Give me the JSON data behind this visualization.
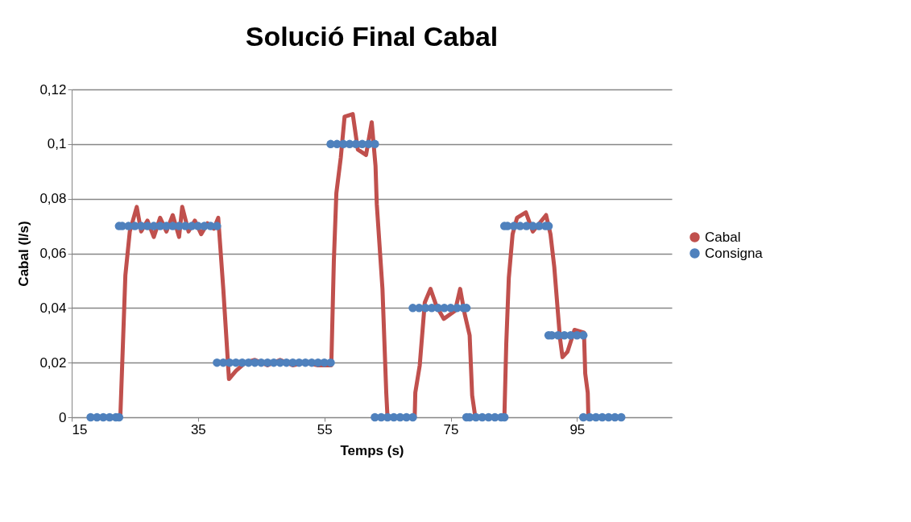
{
  "chart_data": {
    "type": "line",
    "title": "Solució Final Cabal",
    "xlabel": "Temps (s)",
    "ylabel": "Cabal (l/s)",
    "xlim": [
      15,
      110
    ],
    "xticks": [
      15,
      35,
      55,
      75,
      95
    ],
    "ylim": [
      0,
      0.12
    ],
    "yticks": [
      {
        "value": 0,
        "label": "0"
      },
      {
        "value": 0.02,
        "label": "0,02"
      },
      {
        "value": 0.04,
        "label": "0,04"
      },
      {
        "value": 0.06,
        "label": "0,06"
      },
      {
        "value": 0.08,
        "label": "0,08"
      },
      {
        "value": 0.1,
        "label": "0,1"
      },
      {
        "value": 0.12,
        "label": "0,12"
      }
    ],
    "grid": "y",
    "legend": "right",
    "series": [
      {
        "name": "Cabal",
        "color": "#c0504d",
        "marker": "none",
        "line_style": "solid",
        "x": [
          18,
          22.7,
          23.5,
          24.2,
          25.3,
          26,
          27,
          28,
          29,
          30,
          31,
          32,
          32.5,
          33.5,
          34.5,
          35.5,
          36.5,
          37.5,
          38.2,
          39,
          39.9,
          41,
          42.5,
          44,
          46,
          48,
          50,
          52,
          54,
          56.1,
          56.5,
          56.9,
          57.6,
          58.2,
          59.5,
          60.3,
          61.6,
          62.5,
          63.1,
          63.3,
          64.2,
          64.8,
          65,
          69.3,
          69.4,
          70.1,
          70.9,
          71.8,
          72.7,
          73.9,
          75.7,
          76.5,
          77.2,
          78,
          78.4,
          78.9,
          83.5,
          83.8,
          84.2,
          84.8,
          85.5,
          86.9,
          88,
          90.1,
          90.8,
          91.4,
          92.3,
          92.7,
          93.5,
          94.6,
          96.1,
          96.3,
          96.7,
          96.8
        ],
        "values": [
          0,
          0,
          0.052,
          0.068,
          0.077,
          0.068,
          0.072,
          0.066,
          0.073,
          0.068,
          0.074,
          0.066,
          0.077,
          0.068,
          0.072,
          0.067,
          0.071,
          0.069,
          0.073,
          0.047,
          0.014,
          0.017,
          0.02,
          0.021,
          0.019,
          0.021,
          0.019,
          0.02,
          0.019,
          0.019,
          0.057,
          0.082,
          0.095,
          0.11,
          0.111,
          0.098,
          0.096,
          0.108,
          0.092,
          0.078,
          0.047,
          0.009,
          0,
          0,
          0.009,
          0.019,
          0.042,
          0.047,
          0.041,
          0.036,
          0.039,
          0.047,
          0.038,
          0.03,
          0.008,
          0,
          0,
          0.027,
          0.051,
          0.067,
          0.073,
          0.075,
          0.068,
          0.074,
          0.067,
          0.055,
          0.029,
          0.022,
          0.024,
          0.032,
          0.031,
          0.016,
          0.009,
          0
        ]
      },
      {
        "name": "Consigna",
        "type": "scatter",
        "color": "#4f81bd",
        "marker": "circle",
        "x": [
          18,
          19,
          20,
          21,
          22,
          22.5,
          22.5,
          23,
          24,
          25,
          26,
          27,
          28,
          29,
          30,
          31,
          32,
          33,
          34,
          35,
          36,
          37,
          38,
          38,
          39,
          40,
          41,
          42,
          43,
          44,
          45,
          46,
          47,
          48,
          49,
          50,
          51,
          52,
          53,
          54,
          55,
          56,
          56,
          57,
          58,
          59,
          60,
          61,
          62,
          63,
          63,
          64,
          65,
          66,
          67,
          68,
          69,
          69,
          70,
          71,
          72,
          73,
          74,
          75,
          76,
          77,
          77.5,
          77.5,
          78,
          79,
          80,
          81,
          82,
          83,
          83.5,
          83.5,
          84,
          85,
          86,
          87,
          88,
          89,
          90,
          90.5,
          90.5,
          91,
          92,
          93,
          94,
          95,
          96,
          96,
          97,
          98,
          99,
          100,
          101,
          102
        ],
        "values": [
          0,
          0,
          0,
          0,
          0,
          0,
          0.07,
          0.07,
          0.07,
          0.07,
          0.07,
          0.07,
          0.07,
          0.07,
          0.07,
          0.07,
          0.07,
          0.07,
          0.07,
          0.07,
          0.07,
          0.07,
          0.07,
          0.02,
          0.02,
          0.02,
          0.02,
          0.02,
          0.02,
          0.02,
          0.02,
          0.02,
          0.02,
          0.02,
          0.02,
          0.02,
          0.02,
          0.02,
          0.02,
          0.02,
          0.02,
          0.02,
          0.1,
          0.1,
          0.1,
          0.1,
          0.1,
          0.1,
          0.1,
          0.1,
          0,
          0,
          0,
          0,
          0,
          0,
          0,
          0.04,
          0.04,
          0.04,
          0.04,
          0.04,
          0.04,
          0.04,
          0.04,
          0.04,
          0.04,
          0,
          0,
          0,
          0,
          0,
          0,
          0,
          0,
          0.07,
          0.07,
          0.07,
          0.07,
          0.07,
          0.07,
          0.07,
          0.07,
          0.07,
          0.03,
          0.03,
          0.03,
          0.03,
          0.03,
          0.03,
          0.03,
          0,
          0,
          0,
          0,
          0,
          0,
          0
        ]
      }
    ]
  }
}
